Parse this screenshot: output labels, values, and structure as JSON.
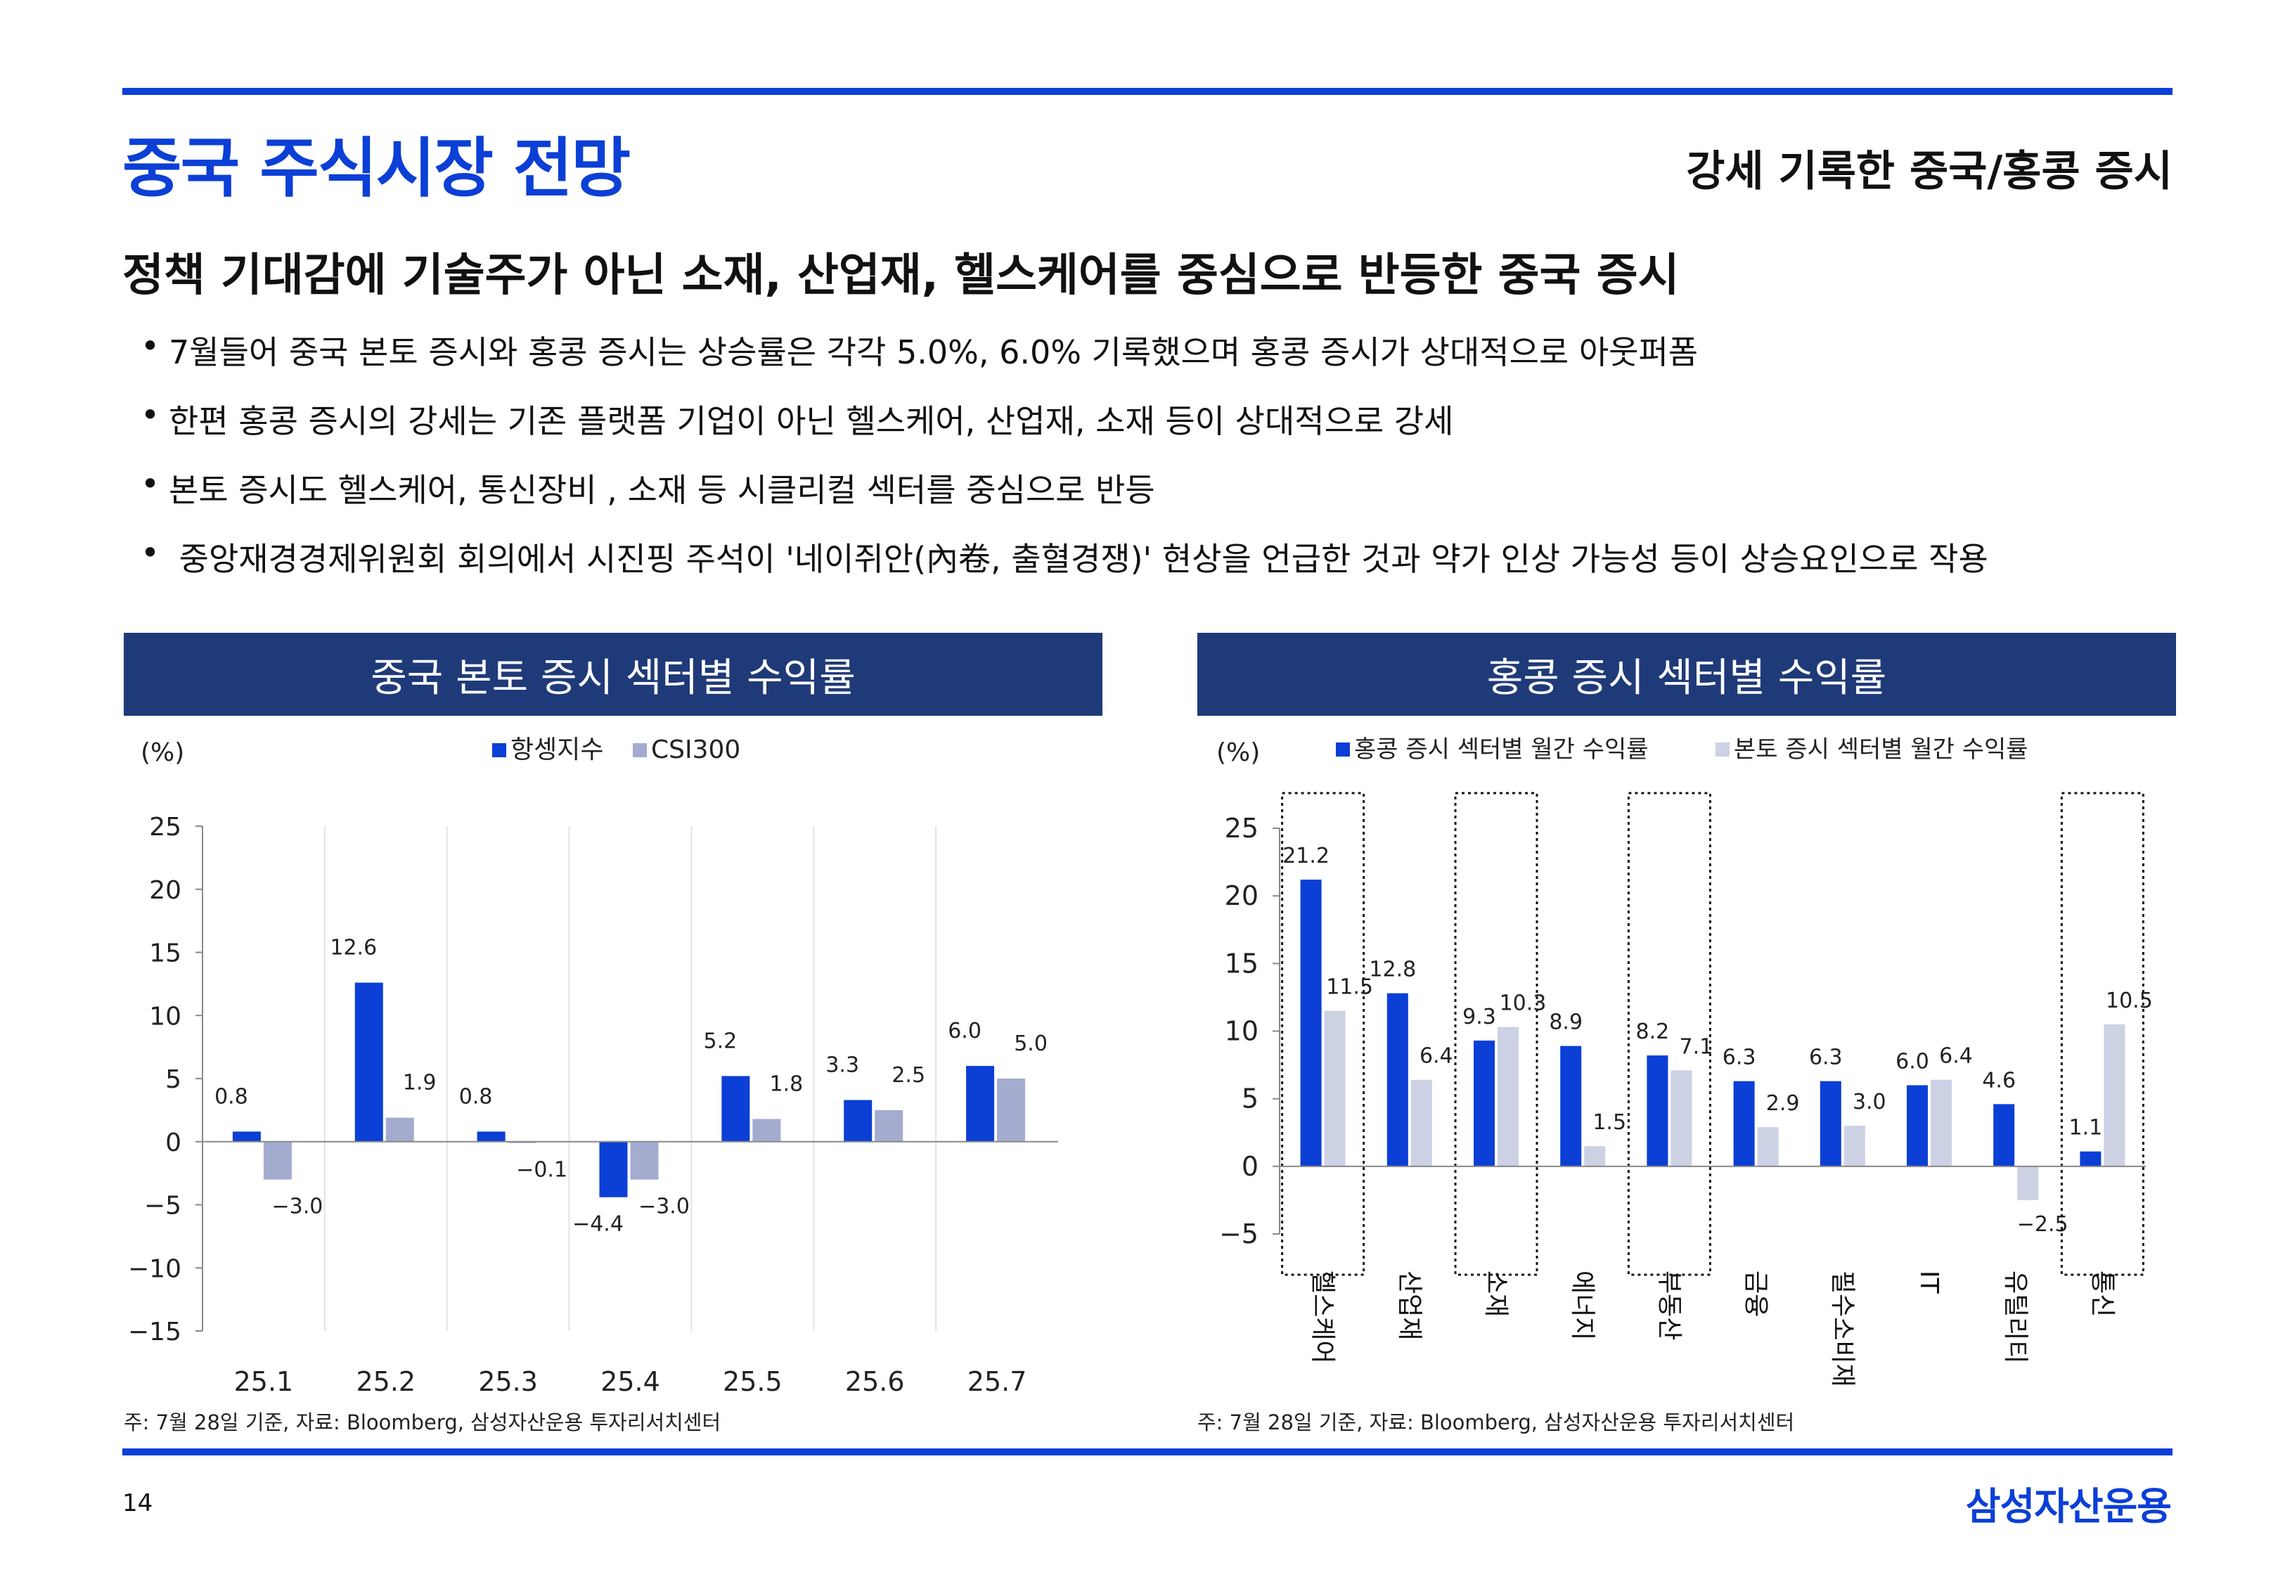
{
  "header": {
    "title": "중국 주식시장 전망",
    "subtitle": "강세 기록한 중국/홍콩 증시"
  },
  "headline": "정책 기대감에 기술주가 아닌 소재, 산업재, 헬스케어를 중심으로 반등한 중국 증시",
  "bullets": [
    "7월들어 중국 본토 증시와 홍콩 증시는 상승률은 각각 5.0%, 6.0% 기록했으며 홍콩 증시가 상대적으로 아웃퍼폼",
    "한편 홍콩 증시의 강세는 기존 플랫폼 기업이 아닌 헬스케어, 산업재, 소재 등이 상대적으로 강세",
    "본토 증시도 헬스케어, 통신장비 , 소재 등 시클리컬 섹터를 중심으로 반등",
    " 중앙재경경제위원회 회의에서 시진핑 주석이 '네이쥐안(內卷, 출혈경쟁)' 현상을 언급한 것과 약가 인상 가능성 등이 상승요인으로 작용"
  ],
  "bullet_symbol": "•",
  "colors": {
    "accent": "#0b3fd6",
    "panel_header": "#1f3a78",
    "series_hk": "#0b3fd6",
    "series_csi": "#a3abcf",
    "series_mainland": "#cdd1e4"
  },
  "chart_data": [
    {
      "type": "bar",
      "panel_title": "중국 본토 증시 섹터별 수익률",
      "unit_label": "(%)",
      "categories": [
        "25.1",
        "25.2",
        "25.3",
        "25.4",
        "25.5",
        "25.6",
        "25.7"
      ],
      "series": [
        {
          "name": "항셍지수",
          "values": [
            0.8,
            12.6,
            0.8,
            -4.4,
            5.2,
            3.3,
            6.0
          ]
        },
        {
          "name": "CSI300",
          "values": [
            -3.0,
            1.9,
            -0.1,
            -3.0,
            1.8,
            2.5,
            5.0
          ]
        }
      ],
      "ylim": [
        -15,
        25
      ],
      "yticks": [
        25,
        20,
        15,
        10,
        5,
        0,
        -5,
        -10,
        -15
      ],
      "grid": false,
      "legend_position": "top-center",
      "note": "주: 7월 28일 기준, 자료: Bloomberg, 삼성자산운용 투자리서치센터"
    },
    {
      "type": "bar",
      "panel_title": "홍콩 증시 섹터별 수익률",
      "unit_label": "(%)",
      "categories": [
        "헬스케어",
        "산업재",
        "소재",
        "에너지",
        "부동산",
        "금융",
        "필수소비재",
        "IT",
        "유틸리티",
        "통신"
      ],
      "series": [
        {
          "name": "홍콩 증시 섹터별 월간 수익률",
          "values": [
            21.2,
            12.8,
            9.3,
            8.9,
            8.2,
            6.3,
            6.3,
            6.0,
            4.6,
            1.1
          ]
        },
        {
          "name": "본토 증시 섹터별 월간 수익률",
          "values": [
            11.5,
            6.4,
            10.3,
            1.5,
            7.1,
            2.9,
            3.0,
            6.4,
            -2.5,
            10.5
          ]
        }
      ],
      "ylim": [
        -5,
        25
      ],
      "yticks": [
        25,
        20,
        15,
        10,
        5,
        0,
        -5
      ],
      "highlighted_categories": [
        "헬스케어",
        "소재",
        "부동산",
        "통신"
      ],
      "grid": false,
      "legend_position": "top",
      "note": "주: 7월 28일 기준, 자료: Bloomberg, 삼성자산운용 투자리서치센터"
    }
  ],
  "footer": {
    "page_number": "14",
    "logo_text": "삼성자산운용"
  }
}
